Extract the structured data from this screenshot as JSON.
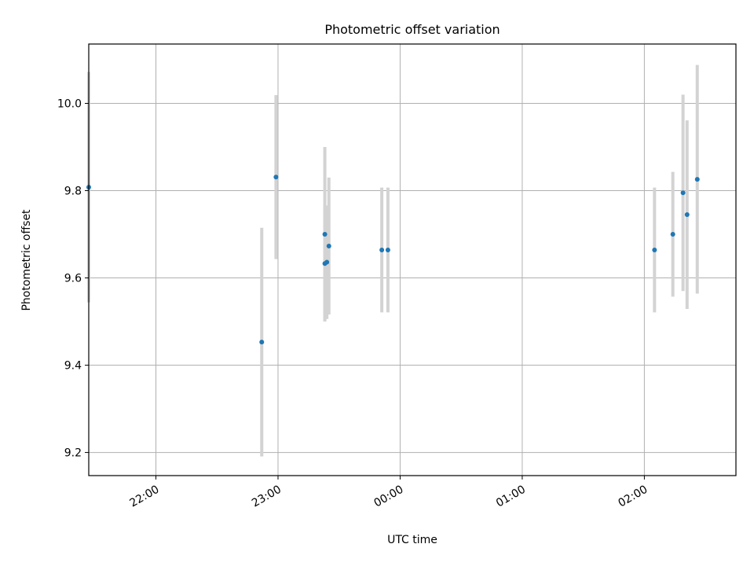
{
  "chart_data": {
    "type": "scatter",
    "title": "Photometric offset variation",
    "xlabel": "UTC time",
    "ylabel": "Photometric offset",
    "x_axis": {
      "kind": "time",
      "range": [
        "21:27",
        "02:45"
      ],
      "ticks": [
        "22:00",
        "23:00",
        "00:00",
        "01:00",
        "02:00"
      ]
    },
    "y_axis": {
      "range": [
        9.147,
        10.136
      ],
      "ticks": [
        "9.2",
        "9.4",
        "9.6",
        "9.8",
        "10.0"
      ]
    },
    "grid": true,
    "series": [
      {
        "marker_color": "#1f77b4",
        "errorbar_color": "#d3d3d3",
        "points": [
          {
            "x": "21:27",
            "y": 9.808,
            "yerr": 0.264
          },
          {
            "x": "22:52",
            "y": 9.453,
            "yerr": 0.262
          },
          {
            "x": "22:59",
            "y": 9.831,
            "yerr": 0.188
          },
          {
            "x": "23:23",
            "y": 9.7,
            "yerr": 0.2
          },
          {
            "x": "23:23",
            "y": 9.633,
            "yerr": 0.13
          },
          {
            "x": "23:24",
            "y": 9.636,
            "yerr": 0.13
          },
          {
            "x": "23:25",
            "y": 9.673,
            "yerr": 0.157
          },
          {
            "x": "23:51",
            "y": 9.664,
            "yerr": 0.143
          },
          {
            "x": "23:54",
            "y": 9.664,
            "yerr": 0.143
          },
          {
            "x": "02:05",
            "y": 9.664,
            "yerr": 0.143
          },
          {
            "x": "02:14",
            "y": 9.7,
            "yerr": 0.143
          },
          {
            "x": "02:19",
            "y": 9.795,
            "yerr": 0.225
          },
          {
            "x": "02:21",
            "y": 9.745,
            "yerr": 0.216
          },
          {
            "x": "02:26",
            "y": 9.826,
            "yerr": 0.262
          }
        ]
      }
    ]
  }
}
